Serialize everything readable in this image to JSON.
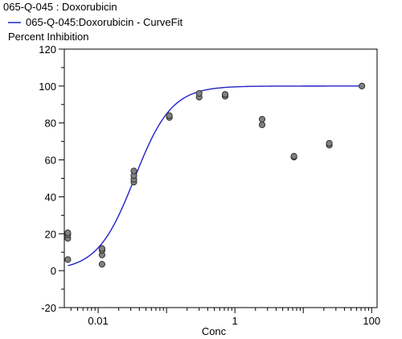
{
  "chart_data": {
    "type": "scatter",
    "title": "065-Q-045  : Doxorubicin",
    "ylabel": "Percent Inhibition",
    "xlabel": "Conc",
    "x_scale": "log",
    "xlim": [
      0.0032,
      120
    ],
    "ylim": [
      -20,
      120
    ],
    "x_ticks": [
      0.01,
      1,
      100
    ],
    "x_tick_labels": [
      "0.01",
      "1",
      "100"
    ],
    "y_ticks": [
      -20,
      0,
      20,
      40,
      60,
      80,
      100,
      120
    ],
    "y_tick_labels": [
      "-20",
      "0",
      "20",
      "40",
      "60",
      "80",
      "100",
      "120"
    ],
    "grid": false,
    "legend": {
      "position": "top-left",
      "entries": [
        {
          "label": "065-Q-045:Doxorubicin - CurveFit",
          "color": "#2222cc"
        }
      ]
    },
    "points": {
      "color": "#808080",
      "x": [
        0.0036,
        0.0036,
        0.0036,
        0.0036,
        0.0114,
        0.0114,
        0.0114,
        0.0114,
        0.0333,
        0.0333,
        0.0333,
        0.0333,
        0.11,
        0.11,
        0.3,
        0.3,
        0.72,
        0.72,
        2.5,
        2.5,
        7.3,
        7.3,
        24,
        24,
        72
      ],
      "y": [
        6,
        17.5,
        19.5,
        20.5,
        3.5,
        8.5,
        11,
        12,
        48,
        49.5,
        51.5,
        54,
        83,
        84,
        94,
        96,
        94.5,
        95.5,
        79,
        82,
        61.5,
        62,
        68,
        69,
        100
      ]
    },
    "curve_fit": {
      "name": "065-Q-045:Doxorubicin - CurveFit",
      "color": "#2222cc",
      "model": "4PL",
      "bottom": 0,
      "top": 100,
      "ec50": 0.034,
      "hill": 1.6,
      "x_range": [
        0.0036,
        72
      ]
    }
  }
}
